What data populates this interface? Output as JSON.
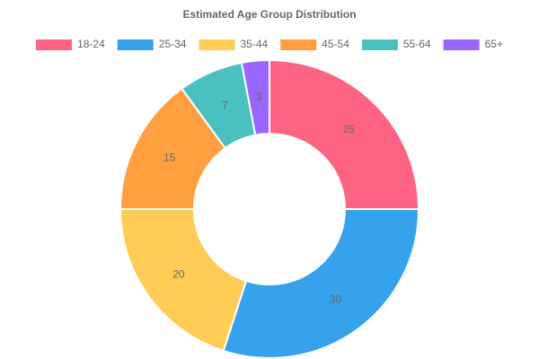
{
  "chart_data": {
    "type": "doughnut",
    "title": "Estimated Age Group Distribution",
    "categories": [
      "18-24",
      "25-34",
      "35-44",
      "45-54",
      "55-64",
      "65+"
    ],
    "values": [
      25,
      30,
      20,
      15,
      7,
      3
    ],
    "colors": [
      "#ff6384",
      "#36a2eb",
      "#ffcd56",
      "#ff9f40",
      "#4bc0c0",
      "#9966ff"
    ],
    "legend": "top"
  }
}
